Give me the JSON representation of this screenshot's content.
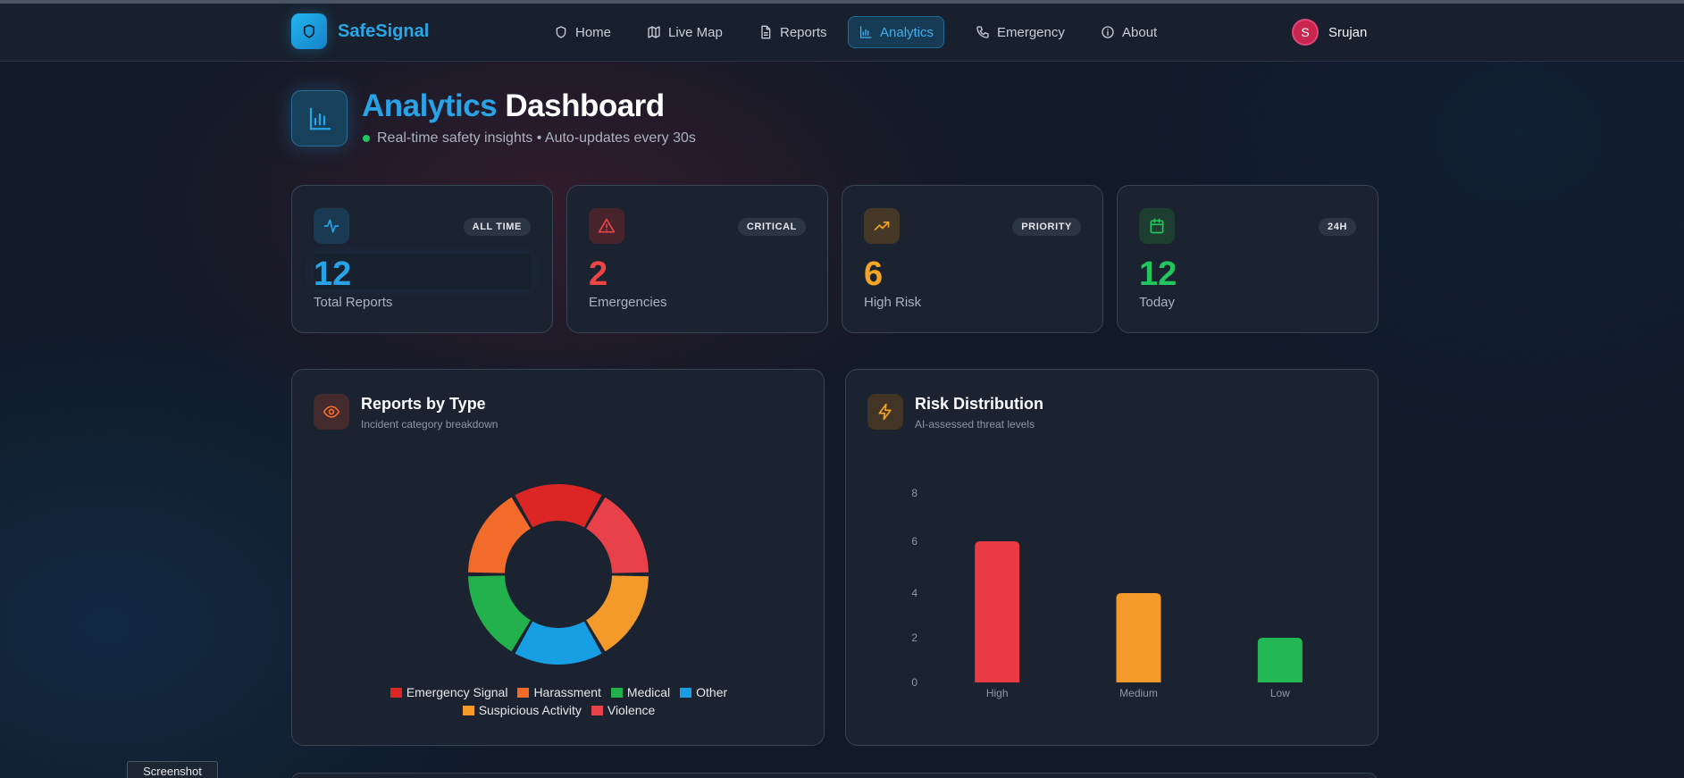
{
  "app": {
    "name": "SafeSignal",
    "logo_icon": "shield-icon"
  },
  "nav": {
    "items": [
      {
        "label": "Home",
        "icon": "shield-icon"
      },
      {
        "label": "Live Map",
        "icon": "map-icon"
      },
      {
        "label": "Reports",
        "icon": "document-icon"
      },
      {
        "label": "Analytics",
        "icon": "bar-chart-icon",
        "active": true
      },
      {
        "label": "Emergency",
        "icon": "phone-icon"
      },
      {
        "label": "About",
        "icon": "info-icon"
      }
    ],
    "user": {
      "initial": "S",
      "name": "Srujan"
    }
  },
  "header": {
    "title_accent": "Analytics",
    "title_rest": "Dashboard",
    "subtitle": "Real-time safety insights • Auto-updates every 30s"
  },
  "stats": [
    {
      "value": "12",
      "label": "Total Reports",
      "badge": "ALL TIME",
      "icon": "activity-icon",
      "color": "#2aa3e6"
    },
    {
      "value": "2",
      "label": "Emergencies",
      "badge": "CRITICAL",
      "icon": "alert-triangle-icon",
      "color": "#ef4444"
    },
    {
      "value": "6",
      "label": "High Risk",
      "badge": "PRIORITY",
      "icon": "trending-up-icon",
      "color": "#f5a524"
    },
    {
      "value": "12",
      "label": "Today",
      "badge": "24H",
      "icon": "calendar-icon",
      "color": "#22c55e"
    }
  ],
  "panels": {
    "type": {
      "title": "Reports by Type",
      "subtitle": "Incident category breakdown",
      "icon": "eye-icon"
    },
    "risk": {
      "title": "Risk Distribution",
      "subtitle": "AI-assessed threat levels",
      "icon": "zap-icon"
    }
  },
  "chart_data": [
    {
      "type": "pie",
      "variant": "doughnut",
      "categories": [
        "Emergency Signal",
        "Harassment",
        "Medical",
        "Other",
        "Suspicious Activity",
        "Violence"
      ],
      "values": [
        2,
        2,
        2,
        2,
        2,
        2
      ],
      "colors": [
        "#dc2626",
        "#f26b2a",
        "#22b14c",
        "#189ee2",
        "#f39a2a",
        "#e8414a"
      ],
      "legend": "bottom"
    },
    {
      "type": "bar",
      "categories": [
        "High",
        "Medium",
        "Low"
      ],
      "values": [
        6,
        4,
        2
      ],
      "colors": [
        "#ea3b44",
        "#f39a2a",
        "#22b955"
      ],
      "ylim": [
        0,
        8
      ],
      "yticks": [
        0,
        2,
        4,
        6,
        8
      ],
      "grid": false
    }
  ],
  "footer": {
    "screenshot_label": "Screenshot"
  }
}
